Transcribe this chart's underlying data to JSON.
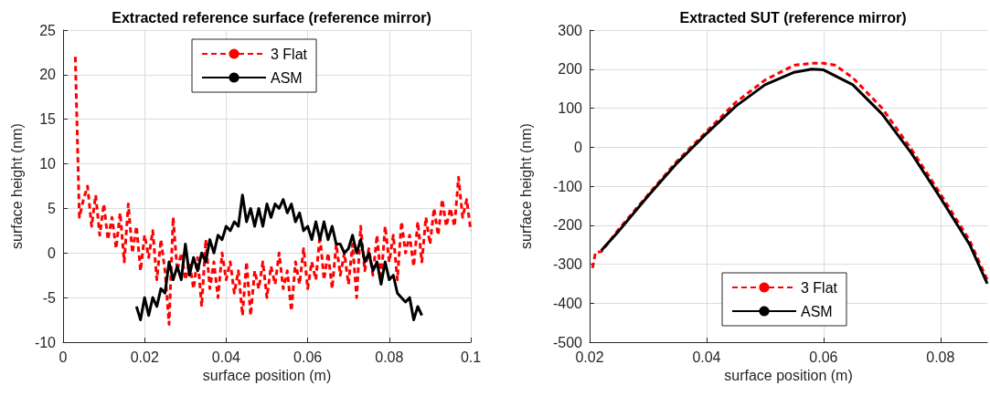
{
  "chart_data": [
    {
      "type": "line",
      "title": "Extracted reference surface (reference mirror)",
      "xlabel": "surface position (m)",
      "ylabel": "surface height (nm)",
      "xlim": [
        0,
        0.1
      ],
      "xticks": [
        0,
        0.02,
        0.04,
        0.06,
        0.08,
        0.1
      ],
      "ylim": [
        -10,
        25
      ],
      "yticks": [
        -10,
        -5,
        0,
        5,
        10,
        15,
        20,
        25
      ],
      "grid": true,
      "legend": "top",
      "marker": "none",
      "series": [
        {
          "name": "3 Flat",
          "color": "#ff0000",
          "line_style": "dashed",
          "x": [
            0.003,
            0.004,
            0.005,
            0.006,
            0.007,
            0.008,
            0.009,
            0.01,
            0.011,
            0.012,
            0.013,
            0.014,
            0.015,
            0.016,
            0.017,
            0.018,
            0.019,
            0.02,
            0.021,
            0.022,
            0.023,
            0.024,
            0.025,
            0.026,
            0.027,
            0.028,
            0.029,
            0.03,
            0.031,
            0.032,
            0.033,
            0.034,
            0.035,
            0.036,
            0.037,
            0.038,
            0.039,
            0.04,
            0.041,
            0.042,
            0.043,
            0.044,
            0.045,
            0.046,
            0.047,
            0.048,
            0.049,
            0.05,
            0.051,
            0.052,
            0.053,
            0.054,
            0.055,
            0.056,
            0.057,
            0.058,
            0.059,
            0.06,
            0.061,
            0.062,
            0.063,
            0.064,
            0.065,
            0.066,
            0.067,
            0.068,
            0.069,
            0.07,
            0.071,
            0.072,
            0.073,
            0.074,
            0.075,
            0.076,
            0.077,
            0.078,
            0.079,
            0.08,
            0.081,
            0.082,
            0.083,
            0.084,
            0.085,
            0.086,
            0.087,
            0.088,
            0.089,
            0.09,
            0.091,
            0.092,
            0.093,
            0.094,
            0.095,
            0.096,
            0.097,
            0.098,
            0.099,
            0.1
          ],
          "values": [
            22,
            4,
            6,
            7.5,
            3,
            6.5,
            2,
            5.5,
            1.5,
            4,
            0.5,
            4.5,
            -1,
            5.5,
            0,
            3,
            -2,
            2,
            -0.5,
            2.5,
            -3,
            1.5,
            -2,
            -8,
            4,
            -2,
            0,
            -3,
            -1,
            -4,
            -0.5,
            -6,
            1.5,
            -4,
            -1,
            -5,
            0,
            -3,
            -1,
            -4.5,
            -2,
            -7,
            -1,
            -7,
            -2,
            -4,
            -1,
            -5,
            -1.5,
            -3.5,
            0,
            -4,
            -2,
            -6.5,
            -1,
            -3.5,
            0.5,
            -4,
            -1,
            -3,
            2,
            -3,
            0,
            -4,
            1,
            -2.5,
            0,
            -3.5,
            1,
            -5,
            3,
            -2,
            0.5,
            -2.5,
            2,
            -3,
            3,
            -1,
            2,
            -3,
            3.5,
            0,
            2,
            -1.5,
            3.5,
            -1,
            4,
            1,
            5,
            2,
            6,
            3,
            5,
            3,
            8.5,
            4,
            6,
            2.5
          ]
        },
        {
          "name": "ASM",
          "color": "#000000",
          "line_style": "solid",
          "x": [
            0.018,
            0.019,
            0.02,
            0.021,
            0.022,
            0.023,
            0.024,
            0.025,
            0.026,
            0.027,
            0.028,
            0.029,
            0.03,
            0.031,
            0.032,
            0.033,
            0.034,
            0.035,
            0.036,
            0.037,
            0.038,
            0.039,
            0.04,
            0.041,
            0.042,
            0.043,
            0.044,
            0.045,
            0.046,
            0.047,
            0.048,
            0.049,
            0.05,
            0.051,
            0.052,
            0.053,
            0.054,
            0.055,
            0.056,
            0.057,
            0.058,
            0.059,
            0.06,
            0.061,
            0.062,
            0.063,
            0.064,
            0.065,
            0.066,
            0.067,
            0.068,
            0.069,
            0.07,
            0.071,
            0.072,
            0.073,
            0.074,
            0.075,
            0.076,
            0.077,
            0.078,
            0.079,
            0.08,
            0.081,
            0.082,
            0.083,
            0.084,
            0.085,
            0.086,
            0.087,
            0.088
          ],
          "values": [
            -6,
            -7.5,
            -5,
            -7,
            -5,
            -6,
            -4,
            -4.5,
            -1,
            -3,
            -1.5,
            -3,
            1,
            -2.5,
            -0.5,
            -2,
            0,
            -1,
            1.5,
            0,
            2,
            1.5,
            3,
            2.5,
            3.5,
            3,
            6.5,
            3.5,
            5,
            3,
            5,
            3,
            5.5,
            4,
            5.5,
            5,
            6,
            4.5,
            5.5,
            3.5,
            4.5,
            2.5,
            3,
            1.5,
            3.5,
            1.5,
            3.5,
            1.5,
            3,
            1,
            1,
            0,
            0.5,
            2,
            0,
            1.5,
            -1,
            0,
            -2,
            -1,
            -3.5,
            -1,
            -3,
            -2.5,
            -4.5,
            -5,
            -5.5,
            -5,
            -7.5,
            -6,
            -7
          ]
        }
      ]
    },
    {
      "type": "line",
      "title": "Extracted SUT (reference mirror)",
      "xlabel": "surface position (m)",
      "ylabel": "surface height (nm)",
      "xlim": [
        0.02,
        0.088
      ],
      "xticks": [
        0.02,
        0.04,
        0.06,
        0.08
      ],
      "ylim": [
        -500,
        300
      ],
      "yticks": [
        -500,
        -400,
        -300,
        -200,
        -100,
        0,
        100,
        200,
        300
      ],
      "grid": true,
      "legend": "bottom",
      "marker": "none",
      "series": [
        {
          "name": "3 Flat",
          "color": "#ff0000",
          "line_style": "dashed",
          "x": [
            0.0205,
            0.021,
            0.022,
            0.025,
            0.03,
            0.035,
            0.04,
            0.045,
            0.05,
            0.055,
            0.058,
            0.06,
            0.062,
            0.065,
            0.07,
            0.075,
            0.08,
            0.085,
            0.088
          ],
          "values": [
            -310,
            -270,
            -268,
            -210,
            -122,
            -35,
            40,
            115,
            172,
            210,
            215,
            215,
            210,
            178,
            100,
            -5,
            -120,
            -240,
            -340
          ]
        },
        {
          "name": "ASM",
          "color": "#000000",
          "line_style": "solid",
          "x": [
            0.022,
            0.025,
            0.03,
            0.035,
            0.04,
            0.045,
            0.05,
            0.055,
            0.058,
            0.06,
            0.065,
            0.07,
            0.075,
            0.08,
            0.085,
            0.088
          ],
          "values": [
            -265,
            -215,
            -125,
            -40,
            35,
            105,
            160,
            192,
            200,
            198,
            160,
            85,
            -15,
            -130,
            -250,
            -350
          ]
        }
      ]
    }
  ]
}
